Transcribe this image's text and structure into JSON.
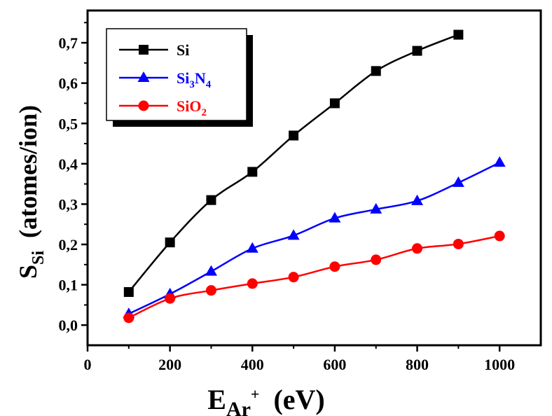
{
  "chart_data": {
    "type": "line",
    "xlim": [
      0,
      1100
    ],
    "ylim": [
      -0.05,
      0.78
    ],
    "x_ticks": [
      0,
      200,
      400,
      600,
      800,
      1000
    ],
    "x_tick_labels": [
      "0",
      "200",
      "400",
      "600",
      "800",
      "1000"
    ],
    "y_ticks": [
      0.0,
      0.1,
      0.2,
      0.3,
      0.4,
      0.5,
      0.6,
      0.7
    ],
    "y_tick_labels": [
      "0,0",
      "0,1",
      "0,2",
      "0,3",
      "0,4",
      "0,5",
      "0,6",
      "0,7"
    ],
    "xlabel": {
      "main": "E",
      "sub": "Ar",
      "sup": "+",
      "unit": "(eV)"
    },
    "ylabel": {
      "main": "S",
      "sub": "Si",
      "unit": "(atomes/ion)"
    },
    "grid": false,
    "legend_position": "top-left",
    "series": [
      {
        "name_parts": [
          [
            "Si",
            ""
          ]
        ],
        "color": "#000000",
        "marker": "square",
        "x": [
          100,
          200,
          300,
          400,
          500,
          600,
          700,
          800,
          900
        ],
        "y": [
          0.082,
          0.205,
          0.31,
          0.38,
          0.47,
          0.55,
          0.63,
          0.68,
          0.72
        ]
      },
      {
        "name_parts": [
          [
            "Si",
            ""
          ],
          [
            "3",
            "sub"
          ],
          [
            "N",
            ""
          ],
          [
            "4",
            "sub"
          ]
        ],
        "color": "#0000ff",
        "marker": "triangle",
        "x": [
          100,
          200,
          300,
          400,
          500,
          600,
          700,
          800,
          900,
          1000
        ],
        "y": [
          0.028,
          0.077,
          0.133,
          0.19,
          0.222,
          0.265,
          0.287,
          0.308,
          0.353,
          0.403
        ]
      },
      {
        "name_parts": [
          [
            "SiO",
            ""
          ],
          [
            "2",
            "sub"
          ]
        ],
        "color": "#ff0000",
        "marker": "circle",
        "x": [
          100,
          200,
          300,
          400,
          500,
          600,
          700,
          800,
          900,
          1000
        ],
        "y": [
          0.018,
          0.066,
          0.086,
          0.103,
          0.119,
          0.145,
          0.162,
          0.19,
          0.201,
          0.221
        ]
      }
    ]
  }
}
